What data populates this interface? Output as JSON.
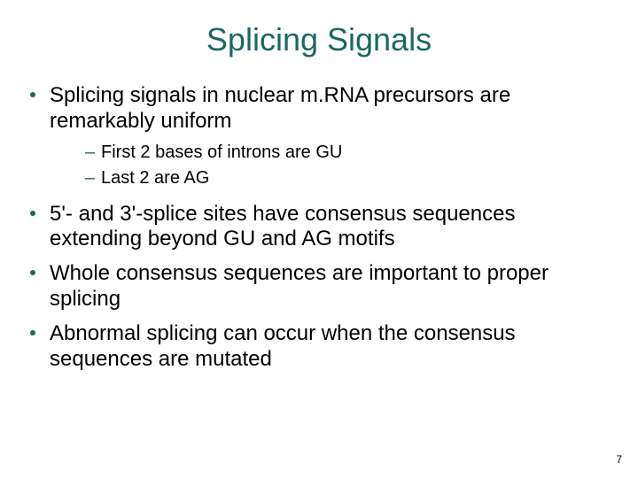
{
  "colors": {
    "title": "#1b6763",
    "body_text": "#000000",
    "bullet_dot": "#1b6763",
    "sub_dash": "#1b6763",
    "background": "#ffffff"
  },
  "title": "Splicing Signals",
  "bullets": [
    {
      "text": "Splicing signals in nuclear m.RNA precursors are remarkably uniform",
      "sub": [
        "First 2 bases of introns are GU",
        "Last 2 are AG"
      ]
    },
    {
      "text": "5'- and 3'-splice sites have consensus sequences extending beyond GU and AG motifs",
      "sub": []
    },
    {
      "text": "Whole consensus sequences are important to proper splicing",
      "sub": []
    },
    {
      "text": "Abnormal splicing can occur when the consensus sequences are mutated",
      "sub": []
    }
  ],
  "page_number": "7"
}
